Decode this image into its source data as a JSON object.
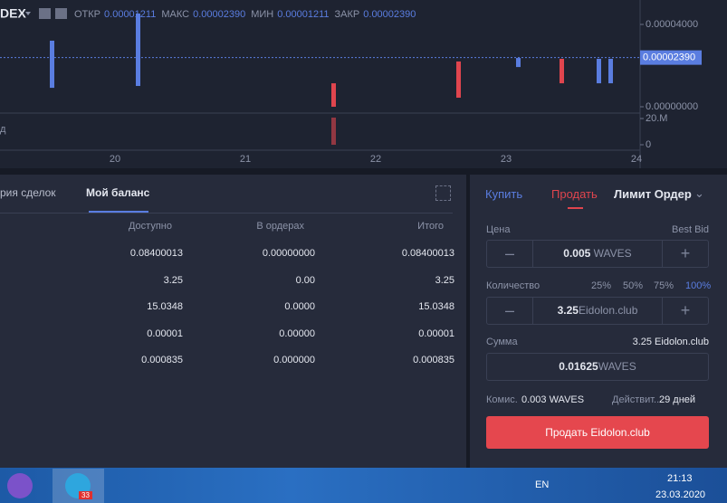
{
  "chart": {
    "market": "DEX",
    "ohlc": [
      {
        "label": "ОТКР",
        "value": "0.00001211"
      },
      {
        "label": "МАКС",
        "value": "0.00002390"
      },
      {
        "label": "МИН",
        "value": "0.00001211"
      },
      {
        "label": "ЗАКР",
        "value": "0.00002390"
      }
    ],
    "yticks": [
      {
        "value": 4e-05,
        "label": "0.00004000"
      },
      {
        "value": 0,
        "label": "0.00000000"
      }
    ],
    "last_price": {
      "value": 2.39e-05,
      "label": "0.00002390"
    },
    "volume_ticks": [
      {
        "value": 20000000,
        "label": "20.M"
      },
      0
    ],
    "volume_label": "д",
    "dates": [
      "20",
      "21",
      "22",
      "23",
      "24"
    ],
    "candles": [
      {
        "open": 9.2e-06,
        "close": 3.21e-05,
        "color": "#5a7de0"
      },
      {
        "open": 1.01e-05,
        "close": 4.53e-05,
        "color": "#5a7de0"
      },
      {
        "open": 1.14e-05,
        "close": 0,
        "color": "#e0454e",
        "volume": 20700000
      },
      {
        "open": 2.2e-05,
        "close": 4.4e-06,
        "color": "#e0454e"
      },
      {
        "open": 1.93e-05,
        "close": 2.37e-05,
        "color": "#5a7de0"
      },
      {
        "open": 2.33e-05,
        "close": 1.14e-05,
        "color": "#e0454e"
      },
      {
        "open": 1.14e-05,
        "close": 2.33e-05,
        "color": "#5a7de0"
      },
      {
        "open": 1.14e-05,
        "close": 2.33e-05,
        "color": "#5a7de0"
      }
    ]
  },
  "balance": {
    "tabs": [
      "рия сделок",
      "Мой баланс"
    ],
    "columns": [
      "Доступно",
      "В ордерах",
      "Итого"
    ],
    "rows": [
      [
        "0.08400013",
        "0.00000000",
        "0.08400013"
      ],
      [
        "3.25",
        "0.00",
        "3.25"
      ],
      [
        "15.0348",
        "0.0000",
        "15.0348"
      ],
      [
        "0.00001",
        "0.00000",
        "0.00001"
      ],
      [
        "0.000835",
        "0.000000",
        "0.000835"
      ]
    ]
  },
  "order_form": {
    "tabs": [
      "Купить",
      "Продать"
    ],
    "order_type": "Лимит Ордер",
    "price": {
      "label": "Цена",
      "hint": "Best Bid",
      "value": "0.005",
      "unit": "WAVES"
    },
    "amount": {
      "label": "Количество",
      "percents": [
        "25%",
        "50%",
        "75%",
        "100%"
      ],
      "value": "3.25",
      "unit": "Eidolon.club"
    },
    "total": {
      "label": "Сумма",
      "hint": "3.25 Eidolon.club",
      "value": "0.01625",
      "unit": "WAVES"
    },
    "fee": "Комис.",
    "fee_value": "0.003 WAVES",
    "expiry_label": "Действит...",
    "expiry_value": "29 дней",
    "submit": "Продать Eidolon.club"
  },
  "taskbar": {
    "telegram_badge": "33",
    "language": "EN",
    "time": "21:13",
    "date": "23.03.2020"
  }
}
